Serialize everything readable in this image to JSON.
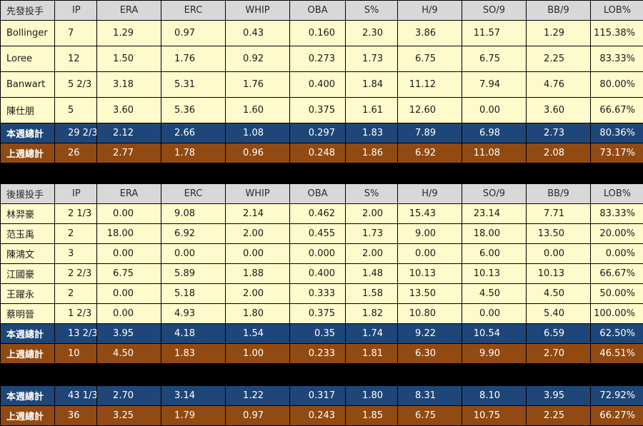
{
  "columns": [
    "IP",
    "ERA",
    "ERC",
    "WHIP",
    "OBA",
    "S%",
    "H/9",
    "SO/9",
    "BB/9",
    "LOB%"
  ],
  "starters": {
    "header_label": "先發投手",
    "rows": [
      {
        "name": "Bollinger",
        "cells": [
          "7",
          "1.29",
          "0.97",
          "0.43",
          "0.160",
          "2.30",
          "3.86",
          "11.57",
          "1.29",
          "115.38%"
        ]
      },
      {
        "name": "Loree",
        "cells": [
          "12",
          "1.50",
          "1.76",
          "0.92",
          "0.273",
          "1.73",
          "6.75",
          "6.75",
          "2.25",
          "83.33%"
        ]
      },
      {
        "name": "Banwart",
        "cells": [
          "5 2/3",
          "3.18",
          "5.31",
          "1.76",
          "0.400",
          "1.84",
          "11.12",
          "7.94",
          "4.76",
          "80.00%"
        ]
      },
      {
        "name": "陳仕朋",
        "cells": [
          "5",
          "3.60",
          "5.36",
          "1.60",
          "0.375",
          "1.61",
          "12.60",
          "0.00",
          "3.60",
          "66.67%"
        ]
      }
    ],
    "this_week": {
      "name": "本週總計",
      "cells": [
        "29 2/3",
        "2.12",
        "2.66",
        "1.08",
        "0.297",
        "1.83",
        "7.89",
        "6.98",
        "2.73",
        "80.36%"
      ]
    },
    "last_week": {
      "name": "上週總計",
      "cells": [
        "26",
        "2.77",
        "1.78",
        "0.96",
        "0.248",
        "1.86",
        "6.92",
        "11.08",
        "2.08",
        "73.17%"
      ]
    }
  },
  "relievers": {
    "header_label": "後援投手",
    "rows": [
      {
        "name": "林羿豪",
        "cells": [
          "2 1/3",
          "0.00",
          "9.08",
          "2.14",
          "0.462",
          "2.00",
          "15.43",
          "23.14",
          "7.71",
          "83.33%"
        ]
      },
      {
        "name": "范玉禹",
        "cells": [
          "2",
          "18.00",
          "6.92",
          "2.00",
          "0.455",
          "1.73",
          "9.00",
          "18.00",
          "13.50",
          "20.00%"
        ]
      },
      {
        "name": "陳鴻文",
        "cells": [
          "3",
          "0.00",
          "0.00",
          "0.00",
          "0.000",
          "2.00",
          "0.00",
          "6.00",
          "0.00",
          "0.00%"
        ]
      },
      {
        "name": "江國豪",
        "cells": [
          "2 2/3",
          "6.75",
          "5.89",
          "1.88",
          "0.400",
          "1.48",
          "10.13",
          "10.13",
          "10.13",
          "66.67%"
        ]
      },
      {
        "name": "王躍永",
        "cells": [
          "2",
          "0.00",
          "5.18",
          "2.00",
          "0.333",
          "1.58",
          "13.50",
          "4.50",
          "4.50",
          "50.00%"
        ]
      },
      {
        "name": "蔡明晉",
        "cells": [
          "1 2/3",
          "0.00",
          "4.93",
          "1.80",
          "0.375",
          "1.82",
          "10.80",
          "0.00",
          "5.40",
          "100.00%"
        ]
      }
    ],
    "this_week": {
      "name": "本週總計",
      "cells": [
        "13 2/3",
        "3.95",
        "4.18",
        "1.54",
        "0.35",
        "1.74",
        "9.22",
        "10.54",
        "6.59",
        "62.50%"
      ]
    },
    "last_week": {
      "name": "上週總計",
      "cells": [
        "10",
        "4.50",
        "1.83",
        "1.00",
        "0.233",
        "1.81",
        "6.30",
        "9.90",
        "2.70",
        "46.51%"
      ]
    }
  },
  "overall": {
    "this_week": {
      "name": "本週總計",
      "cells": [
        "43 1/3",
        "2.70",
        "3.14",
        "1.22",
        "0.317",
        "1.80",
        "8.31",
        "8.10",
        "3.95",
        "72.92%"
      ]
    },
    "last_week": {
      "name": "上週總計",
      "cells": [
        "36",
        "3.25",
        "1.79",
        "0.97",
        "0.243",
        "1.85",
        "6.75",
        "10.75",
        "2.25",
        "66.27%"
      ]
    }
  },
  "colors": {
    "header_bg": "#d8d8d8",
    "row_bg": "#fdfacc",
    "this_week_bg": "#1f4678",
    "last_week_bg": "#914a12",
    "separator": "#000000"
  }
}
